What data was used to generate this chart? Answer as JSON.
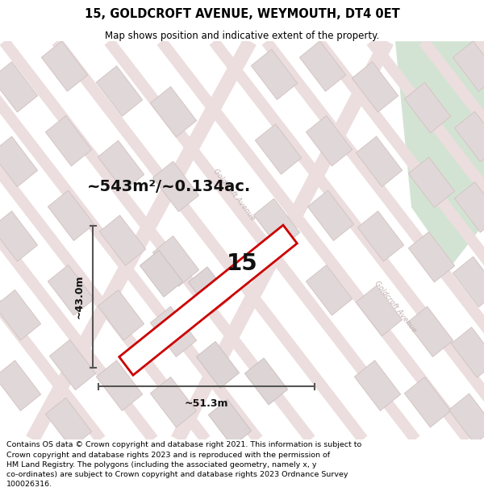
{
  "title": "15, GOLDCROFT AVENUE, WEYMOUTH, DT4 0ET",
  "subtitle": "Map shows position and indicative extent of the property.",
  "area_label": "~543m²/~0.134ac.",
  "property_number": "15",
  "width_label": "~51.3m",
  "height_label": "~43.0m",
  "footer_text": "Contains OS data © Crown copyright and database right 2021. This information is subject to Crown copyright and database rights 2023 and is reproduced with the permission of HM Land Registry. The polygons (including the associated geometry, namely x, y co-ordinates) are subject to Crown copyright and database rights 2023 Ordnance Survey 100026316.",
  "bg_color": "#f0eaea",
  "highlight_color": "#cc0000",
  "highlight_fill": "#ffffff",
  "green_color": "#c8dcc8",
  "road_color": "#e8d0d0",
  "building_color": "#e0d8d8",
  "building_edge": "#d4c4c4",
  "street_color": "#c0b0b0",
  "title_color": "#000000",
  "footer_color": "#000000",
  "arrow_color": "#555555",
  "title_fontsize": 10.5,
  "subtitle_fontsize": 8.5,
  "area_fontsize": 14,
  "number_fontsize": 20,
  "dim_fontsize": 9,
  "footer_fontsize": 6.8
}
